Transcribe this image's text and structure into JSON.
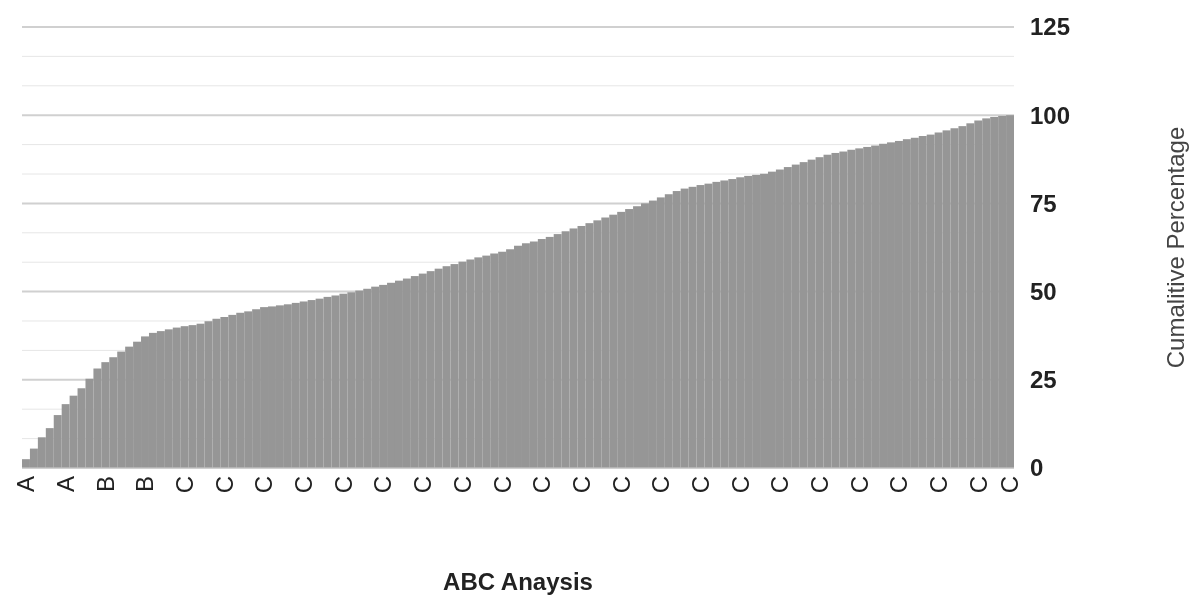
{
  "chart_data": {
    "type": "bar",
    "xlabel": "ABC Anaysis",
    "ylabel": "Cumalitive Percentage",
    "categories": [
      "A",
      null,
      null,
      null,
      null,
      "A",
      null,
      null,
      null,
      null,
      "B",
      null,
      null,
      null,
      null,
      "B",
      null,
      null,
      null,
      null,
      "C",
      null,
      null,
      null,
      null,
      "C",
      null,
      null,
      null,
      null,
      "C",
      null,
      null,
      null,
      null,
      "C",
      null,
      null,
      null,
      null,
      "C",
      null,
      null,
      null,
      null,
      "C",
      null,
      null,
      null,
      null,
      "C",
      null,
      null,
      null,
      null,
      "C",
      null,
      null,
      null,
      null,
      "C",
      null,
      null,
      null,
      null,
      "C",
      null,
      null,
      null,
      null,
      "C",
      null,
      null,
      null,
      null,
      "C",
      null,
      null,
      null,
      null,
      "C",
      null,
      null,
      null,
      null,
      "C",
      null,
      null,
      null,
      null,
      "C",
      null,
      null,
      null,
      null,
      "C",
      null,
      null,
      null,
      null,
      "C",
      null,
      null,
      null,
      null,
      "C",
      null,
      null,
      null,
      null,
      "C",
      null,
      null,
      null,
      null,
      "C",
      null,
      null,
      null,
      null,
      "C",
      null,
      null,
      null,
      "C"
    ],
    "values": [
      2.5,
      5.5,
      8.7,
      11.3,
      15,
      18.1,
      20.5,
      22.6,
      25.3,
      28.2,
      30,
      31.4,
      33,
      34.4,
      35.8,
      37.3,
      38.3,
      38.8,
      39.3,
      39.8,
      40.2,
      40.5,
      40.9,
      41.6,
      42.3,
      42.8,
      43.4,
      44,
      44.4,
      45,
      45.6,
      45.8,
      46.1,
      46.4,
      46.8,
      47.2,
      47.6,
      48,
      48.5,
      48.9,
      49.4,
      49.8,
      50.3,
      50.8,
      51.4,
      51.9,
      52.5,
      53.1,
      53.7,
      54.4,
      55.1,
      55.8,
      56.5,
      57.2,
      57.8,
      58.5,
      59.1,
      59.7,
      60.2,
      60.8,
      61.3,
      62,
      63,
      63.7,
      64.2,
      64.9,
      65.5,
      66.3,
      67.1,
      67.9,
      68.6,
      69.4,
      70.2,
      71,
      71.8,
      72.6,
      73.4,
      74.2,
      75,
      75.8,
      76.7,
      77.6,
      78.5,
      79.2,
      79.7,
      80.2,
      80.6,
      81.1,
      81.5,
      81.9,
      82.4,
      82.8,
      83.1,
      83.4,
      84,
      84.6,
      85.3,
      86,
      86.7,
      87.4,
      88.1,
      88.8,
      89.3,
      89.7,
      90.2,
      90.6,
      91,
      91.4,
      91.9,
      92.3,
      92.7,
      93.2,
      93.6,
      94.1,
      94.5,
      95.1,
      95.7,
      96.3,
      96.9,
      97.7,
      98.5,
      99.1,
      99.5,
      99.8,
      100
    ],
    "color": "#969696",
    "ylim": [
      0,
      125
    ],
    "yticks": [
      0,
      {
        "value": 8.33,
        "label": null
      },
      {
        "value": 16.67,
        "label": null
      },
      25,
      {
        "value": 33.33,
        "label": null
      },
      {
        "value": 41.67,
        "label": null
      },
      50,
      {
        "value": 58.33,
        "label": null
      },
      {
        "value": 66.67,
        "label": null
      },
      75,
      {
        "value": 83.33,
        "label": null
      },
      {
        "value": 91.67,
        "label": null
      },
      100,
      {
        "value": 108.33,
        "label": null
      },
      {
        "value": 116.67,
        "label": null
      },
      125
    ],
    "grid": true
  }
}
